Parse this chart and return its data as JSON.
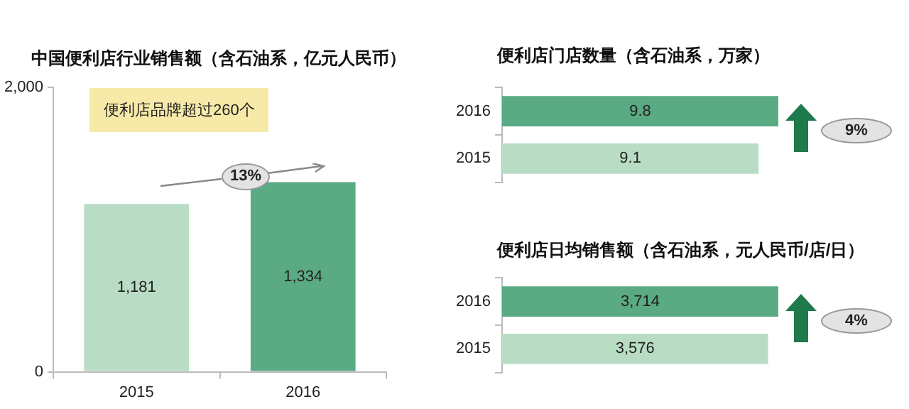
{
  "chart_data": [
    {
      "type": "bar",
      "title": "中国便利店行业销售额（含石油系，亿元人民币）",
      "categories": [
        "2015",
        "2016"
      ],
      "values": [
        1181,
        1334
      ],
      "colors": [
        "#b9dcc4",
        "#5aab83"
      ],
      "value_labels": [
        "1,181",
        "1,334"
      ],
      "ylim": [
        0,
        2000
      ],
      "yticks": [
        0,
        {
          "value": 2000,
          "label": "2,000"
        }
      ],
      "grid": false,
      "legend": false,
      "annotations": [
        "便利店品牌超过260个",
        "13%"
      ]
    },
    {
      "type": "bar",
      "orientation": "horizontal",
      "title": "便利店门店数量（含石油系，万家）",
      "categories": [
        "2016",
        "2015"
      ],
      "values": [
        9.8,
        9.1
      ],
      "colors": [
        "#5aab83",
        "#b9dcc4"
      ],
      "value_labels": [
        "9.8",
        "9.1"
      ],
      "tick_labels": "y",
      "grid": false,
      "legend": false,
      "annotations": [
        "9%"
      ]
    },
    {
      "type": "bar",
      "orientation": "horizontal",
      "title": "便利店日均销售额（含石油系，元人民币/店/日）",
      "categories": [
        "2016",
        "2015"
      ],
      "values": [
        3714,
        3576
      ],
      "colors": [
        "#5aab83",
        "#b9dcc4"
      ],
      "value_labels": [
        "3,714",
        "3,576"
      ],
      "tick_labels": "y",
      "grid": false,
      "legend": false,
      "annotations": [
        "4%"
      ]
    }
  ]
}
